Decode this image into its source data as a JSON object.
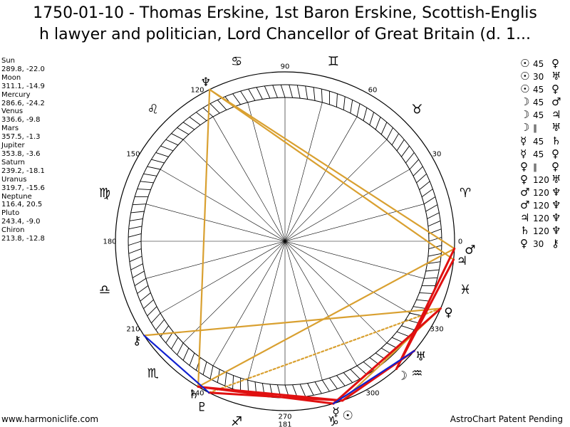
{
  "header": {
    "title_line1": "1750-01-10 - Thomas Erskine, 1st Baron Erskine, Scottish-Englis",
    "title_line2": "h lawyer and politician, Lord Chancellor of Great Britain (d. 1..."
  },
  "footer": {
    "left": "www.harmoniclife.com",
    "right": "AstroChart Patent Pending"
  },
  "chart_data": {
    "type": "radial",
    "bodies": [
      {
        "name": "Sun",
        "longitude": 289.8,
        "latitude": -22.0,
        "coords": "289.8, -22.0",
        "glyph": "☉"
      },
      {
        "name": "Moon",
        "longitude": 311.1,
        "latitude": -14.9,
        "coords": "311.1, -14.9",
        "glyph": "☽"
      },
      {
        "name": "Mercury",
        "longitude": 286.6,
        "latitude": -24.2,
        "coords": "286.6, -24.2",
        "glyph": "☿"
      },
      {
        "name": "Venus",
        "longitude": 336.6,
        "latitude": -9.8,
        "coords": "336.6, -9.8",
        "glyph": "♀"
      },
      {
        "name": "Mars",
        "longitude": 357.5,
        "latitude": -1.3,
        "coords": "357.5, -1.3",
        "glyph": "♂"
      },
      {
        "name": "Jupiter",
        "longitude": 353.8,
        "latitude": -3.6,
        "coords": "353.8, -3.6",
        "glyph": "♃"
      },
      {
        "name": "Saturn",
        "longitude": 239.2,
        "latitude": -18.1,
        "coords": "239.2, -18.1",
        "glyph": "♄"
      },
      {
        "name": "Uranus",
        "longitude": 319.7,
        "latitude": -15.6,
        "coords": "319.7, -15.6",
        "glyph": "♅"
      },
      {
        "name": "Neptune",
        "longitude": 116.4,
        "latitude": 20.5,
        "coords": "116.4, 20.5",
        "glyph": "♆"
      },
      {
        "name": "Pluto",
        "longitude": 243.4,
        "latitude": -9.0,
        "coords": "243.4, -9.0",
        "glyph": "♇"
      },
      {
        "name": "Chiron",
        "longitude": 213.8,
        "latitude": -12.8,
        "coords": "213.8, -12.8",
        "glyph": "⚷"
      }
    ],
    "aspects": [
      {
        "p1": "☉",
        "angle": "45",
        "p2": "♀"
      },
      {
        "p1": "☉",
        "angle": "30",
        "p2": "♅"
      },
      {
        "p1": "☉",
        "angle": "45",
        "p2": "♀"
      },
      {
        "p1": "☽",
        "angle": "45",
        "p2": "♂"
      },
      {
        "p1": "☽",
        "angle": "45",
        "p2": "♃"
      },
      {
        "p1": "☽",
        "angle": "∥",
        "p2": "♅"
      },
      {
        "p1": "☿",
        "angle": "45",
        "p2": "♄"
      },
      {
        "p1": "☿",
        "angle": "45",
        "p2": "♀"
      },
      {
        "p1": "♀",
        "angle": "∥",
        "p2": "♀"
      },
      {
        "p1": "♀",
        "angle": "120",
        "p2": "♅"
      },
      {
        "p1": "♂",
        "angle": "120",
        "p2": "♆"
      },
      {
        "p1": "♂",
        "angle": "120",
        "p2": "♆"
      },
      {
        "p1": "♃",
        "angle": "120",
        "p2": "♆"
      },
      {
        "p1": "♄",
        "angle": "120",
        "p2": "♆"
      },
      {
        "p1": "♀",
        "angle": "30",
        "p2": "⚷"
      }
    ],
    "degree_labels": [
      {
        "deg": 0,
        "text": "0"
      },
      {
        "deg": 30,
        "text": "30"
      },
      {
        "deg": 60,
        "text": "60"
      },
      {
        "deg": 90,
        "text": "90"
      },
      {
        "deg": 120,
        "text": "120"
      },
      {
        "deg": 150,
        "text": "150"
      },
      {
        "deg": 180,
        "text": "180"
      },
      {
        "deg": 210,
        "text": "210"
      },
      {
        "deg": 240,
        "text": "240"
      },
      {
        "deg": 270,
        "text": "270"
      },
      {
        "deg": 300,
        "text": "300"
      },
      {
        "deg": 330,
        "text": "330"
      }
    ],
    "extra_label": "181",
    "zodiac_signs": [
      "♈",
      "♉",
      "♊",
      "♋",
      "♌",
      "♍",
      "♎",
      "♏",
      "♐",
      "♑",
      "♒",
      "♓"
    ],
    "chart_lines": [
      {
        "from": 116.4,
        "to": 239.2,
        "color": "#d9a030",
        "style": "solid"
      },
      {
        "from": 116.4,
        "to": 357.5,
        "color": "#d9a030",
        "style": "solid"
      },
      {
        "from": 116.4,
        "to": 353.8,
        "color": "#d9a030",
        "style": "solid"
      },
      {
        "from": 239.2,
        "to": 357.5,
        "color": "#d9a030",
        "style": "solid"
      },
      {
        "from": 213.8,
        "to": 336.6,
        "color": "#d9a030",
        "style": "solid"
      },
      {
        "from": 243.4,
        "to": 336.6,
        "color": "#d9a030",
        "style": "dotted"
      },
      {
        "from": 289.8,
        "to": 336.6,
        "color": "#d9a030",
        "style": "solid"
      },
      {
        "from": 239.2,
        "to": 286.6,
        "color": "#e01010",
        "style": "solid"
      },
      {
        "from": 243.4,
        "to": 289.8,
        "color": "#e01010",
        "style": "solid"
      },
      {
        "from": 239.2,
        "to": 289.8,
        "color": "#e01010",
        "style": "solid"
      },
      {
        "from": 289.8,
        "to": 319.7,
        "color": "#e01010",
        "style": "solid"
      },
      {
        "from": 286.6,
        "to": 336.6,
        "color": "#e01010",
        "style": "solid"
      },
      {
        "from": 311.1,
        "to": 357.5,
        "color": "#e01010",
        "style": "solid"
      },
      {
        "from": 311.1,
        "to": 353.8,
        "color": "#e01010",
        "style": "solid"
      },
      {
        "from": 213.8,
        "to": 243.4,
        "color": "#1020d0",
        "style": "solid"
      },
      {
        "from": 286.6,
        "to": 319.7,
        "color": "#1020d0",
        "style": "solid"
      }
    ],
    "ring_color": "#000000",
    "line_colors": {
      "trine": "#d9a030",
      "hard": "#e01010",
      "soft": "#1020d0"
    }
  }
}
